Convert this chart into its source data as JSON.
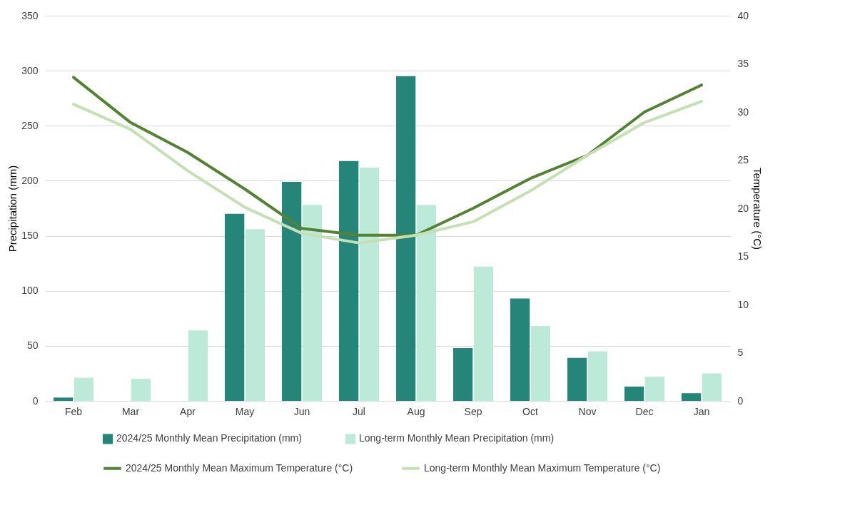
{
  "chart_data": {
    "type": "bar",
    "categories": [
      "Feb",
      "Mar",
      "Apr",
      "May",
      "Jun",
      "Jul",
      "Aug",
      "Sep",
      "Oct",
      "Nov",
      "Dec",
      "Jan"
    ],
    "ylabel": "Precipitation (mm)",
    "y2label": "Temperature (°C)",
    "ylim": [
      0,
      350
    ],
    "yticks": [
      0,
      50,
      100,
      150,
      200,
      250,
      300,
      350
    ],
    "y2lim": [
      0,
      40
    ],
    "y2ticks": [
      0,
      5,
      10,
      15,
      20,
      25,
      30,
      35,
      40
    ],
    "grid": "y",
    "legend": "bottom",
    "series": [
      {
        "name": "2024/25 Monthly Mean Precipitation (mm)",
        "type": "bar",
        "color": "#268579",
        "values": [
          3,
          null,
          null,
          170,
          199,
          218,
          295,
          48,
          93,
          39,
          13,
          7
        ]
      },
      {
        "name": "Long-term Monthly Mean Precipitation (mm)",
        "type": "bar",
        "color": "#bde9d9",
        "values": [
          21,
          20,
          64,
          156,
          178,
          212,
          178,
          122,
          68,
          45,
          22,
          25
        ]
      },
      {
        "name": "2024/25 Monthly Mean Maximum Temperature (°C)",
        "type": "line",
        "axis": "y2",
        "color": "#548235",
        "values": [
          33.6,
          28.9,
          25.8,
          22.0,
          17.9,
          17.2,
          17.2,
          20.0,
          23.1,
          25.5,
          30.0,
          32.8
        ]
      },
      {
        "name": "Long-term Monthly Mean Maximum Temperature (°C)",
        "type": "line",
        "axis": "y2",
        "color": "#c5e0b4",
        "values": [
          30.8,
          28.2,
          23.9,
          20.1,
          17.4,
          16.4,
          17.2,
          18.6,
          21.8,
          25.5,
          28.9,
          31.1
        ]
      }
    ]
  }
}
